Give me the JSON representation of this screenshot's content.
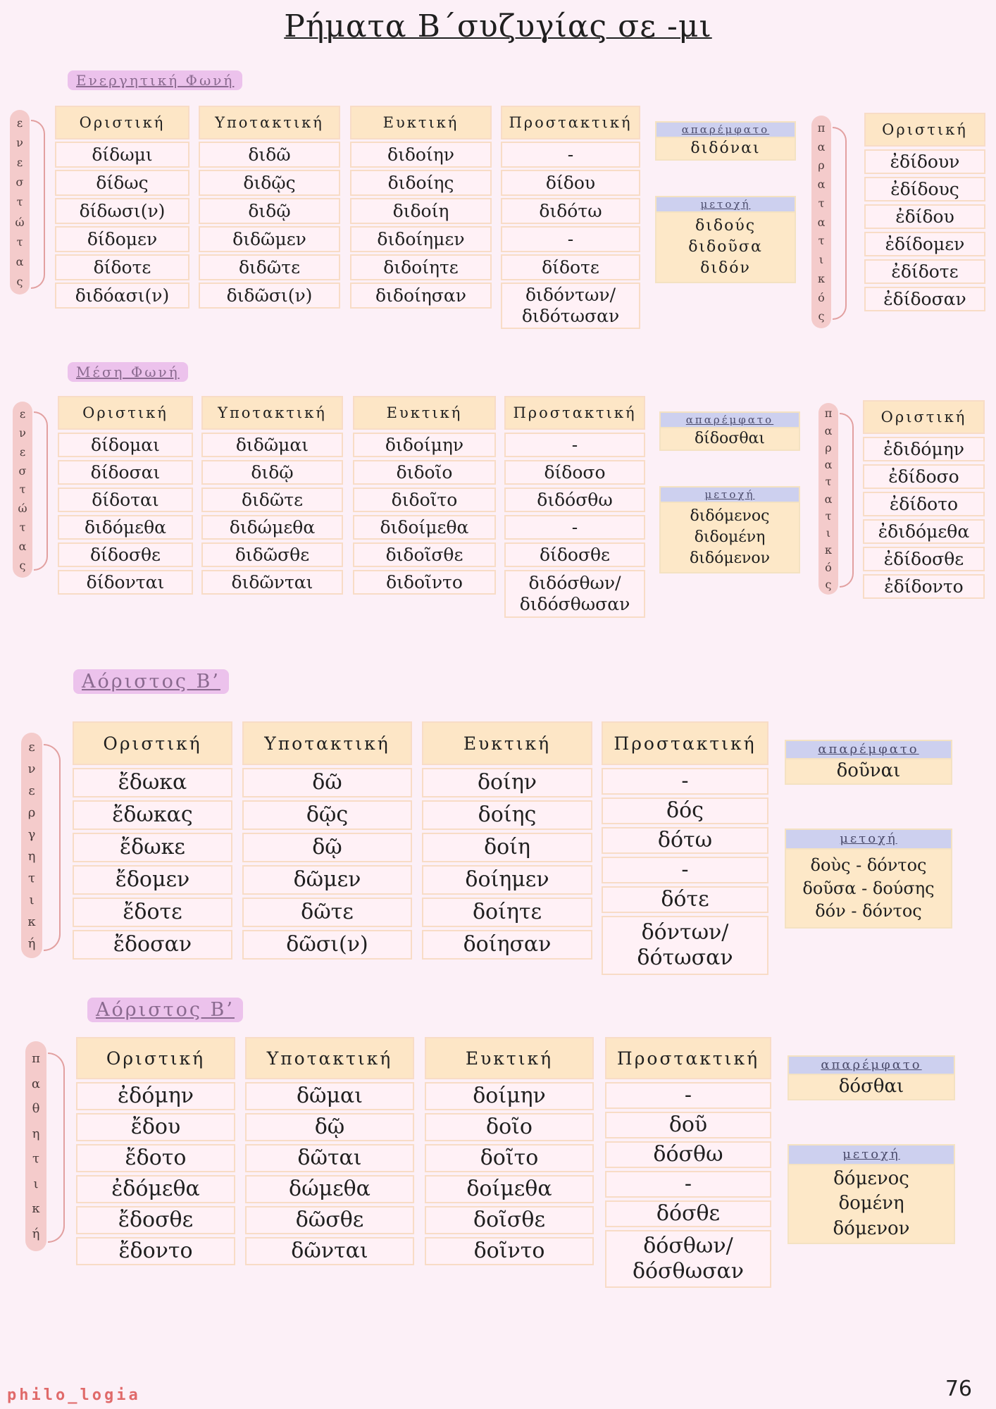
{
  "title": "Ρήματα Β΄συζυγίας σε -μι",
  "sections": {
    "active": {
      "tag": "Ενεργητική Φωνή",
      "side_left": [
        "ε",
        "ν",
        "ε",
        "σ",
        "τ",
        "ώ",
        "τ",
        "α",
        "ς"
      ],
      "side_right": [
        "π",
        "α",
        "ρ",
        "α",
        "τ",
        "α",
        "τ",
        "ι",
        "κ",
        "ό",
        "ς"
      ],
      "headers": [
        "Οριστική",
        "Υποτακτική",
        "Ευκτική",
        "Προστακτική"
      ],
      "oristiki": [
        "δίδωμι",
        "δίδως",
        "δίδωσι(ν)",
        "δίδομεν",
        "δίδοτε",
        "διδόασι(ν)"
      ],
      "ypotaktiki": [
        "διδῶ",
        "διδῷς",
        "διδῷ",
        "διδῶμεν",
        "διδῶτε",
        "διδῶσι(ν)"
      ],
      "efktiki": [
        "διδοίην",
        "διδοίης",
        "διδοίη",
        "διδοίημεν",
        "διδοίητε",
        "διδοίησαν"
      ],
      "prostaktiki": [
        "-",
        "δίδου",
        "διδότω",
        "-",
        "δίδοτε",
        "διδόντων/ διδότωσαν"
      ],
      "infinitive_label": "απαρέμφατο",
      "infinitive": "διδόναι",
      "participle_label": "μετοχή",
      "participle": [
        "διδούς",
        "διδοῦσα",
        "διδόν"
      ],
      "paratatikos_header": "Οριστική",
      "paratatikos": [
        "ἐδίδουν",
        "ἐδίδους",
        "ἐδίδου",
        "ἐδίδομεν",
        "ἐδίδοτε",
        "ἐδίδοσαν"
      ]
    },
    "middle": {
      "tag": "Μέση Φωνή",
      "side_left": [
        "ε",
        "ν",
        "ε",
        "σ",
        "τ",
        "ώ",
        "τ",
        "α",
        "ς"
      ],
      "side_right": [
        "π",
        "α",
        "ρ",
        "α",
        "τ",
        "α",
        "τ",
        "ι",
        "κ",
        "ό",
        "ς"
      ],
      "headers": [
        "Οριστική",
        "Υποτακτική",
        "Ευκτική",
        "Προστακτική"
      ],
      "oristiki": [
        "δίδομαι",
        "δίδοσαι",
        "δίδοται",
        "διδόμεθα",
        "δίδοσθε",
        "δίδονται"
      ],
      "ypotaktiki": [
        "διδῶμαι",
        "διδῷ",
        "διδῶτε",
        "διδώμεθα",
        "διδῶσθε",
        "διδῶνται"
      ],
      "efktiki": [
        "διδοίμην",
        "διδοῖο",
        "διδοῖτο",
        "διδοίμεθα",
        "διδοῖσθε",
        "διδοῖντο"
      ],
      "prostaktiki": [
        "-",
        "δίδοσο",
        "διδόσθω",
        "-",
        "δίδοσθε",
        "διδόσθων/ διδόσθωσαν"
      ],
      "infinitive_label": "απαρέμφατο",
      "infinitive": "δίδοσθαι",
      "participle_label": "μετοχή",
      "participle": [
        "διδόμενος",
        "διδομένη",
        "διδόμενον"
      ],
      "paratatikos_header": "Οριστική",
      "paratatikos": [
        "ἐδιδόμην",
        "ἐδίδοσο",
        "ἐδίδοτο",
        "ἐδιδόμεθα",
        "ἐδίδοσθε",
        "ἐδίδοντο"
      ]
    },
    "aorist_active": {
      "tag": "Αόριστος Β’",
      "side_left": [
        "ε",
        "ν",
        "ε",
        "ρ",
        "γ",
        "η",
        "τ",
        "ι",
        "κ",
        "ή"
      ],
      "headers": [
        "Οριστική",
        "Υποτακτική",
        "Ευκτική",
        "Προστακτική"
      ],
      "oristiki": [
        "ἔδωκα",
        "ἔδωκας",
        "ἔδωκε",
        "ἔδομεν",
        "ἔδοτε",
        "ἔδοσαν"
      ],
      "ypotaktiki": [
        "δῶ",
        "δῷς",
        "δῷ",
        "δῶμεν",
        "δῶτε",
        "δῶσι(ν)"
      ],
      "efktiki": [
        "δοίην",
        "δοίης",
        "δοίη",
        "δοίημεν",
        "δοίητε",
        "δοίησαν"
      ],
      "prostaktiki": [
        "-",
        "δός",
        "δότω",
        "-",
        "δότε",
        "δόντων/ δότωσαν"
      ],
      "infinitive_label": "απαρέμφατο",
      "infinitive": "δοῦναι",
      "participle_label": "μετοχή",
      "participle": [
        "δοὺς - δόντος",
        "δοῦσα - δούσης",
        "δόν - δόντος"
      ]
    },
    "aorist_passive": {
      "tag": "Αόριστος Β’",
      "side_left": [
        "π",
        "α",
        "θ",
        "η",
        "τ",
        "ι",
        "κ",
        "ή"
      ],
      "headers": [
        "Οριστική",
        "Υποτακτική",
        "Ευκτική",
        "Προστακτική"
      ],
      "oristiki": [
        "ἐδόμην",
        "ἔδου",
        "ἔδοτο",
        "ἐδόμεθα",
        "ἔδοσθε",
        "ἔδοντο"
      ],
      "ypotaktiki": [
        "δῶμαι",
        "δῷ",
        "δῶται",
        "δώμεθα",
        "δῶσθε",
        "δῶνται"
      ],
      "efktiki": [
        "δοίμην",
        "δοῖο",
        "δοῖτο",
        "δοίμεθα",
        "δοῖσθε",
        "δοῖντο"
      ],
      "prostaktiki": [
        "-",
        "δοῦ",
        "δόσθω",
        "-",
        "δόσθε",
        "δόσθων/ δόσθωσαν"
      ],
      "infinitive_label": "απαρέμφατο",
      "infinitive": "δόσθαι",
      "participle_label": "μετοχή",
      "participle": [
        "δόμενος",
        "δομένη",
        "δόμενον"
      ]
    }
  },
  "footer": {
    "brand": "philo_logia",
    "page": "76"
  },
  "colors": {
    "background": "#fcf0f7",
    "header": "#fde6c6",
    "tag": "#ecc2ec",
    "label": "#cdd0ef",
    "side": "#f4cbcb"
  }
}
